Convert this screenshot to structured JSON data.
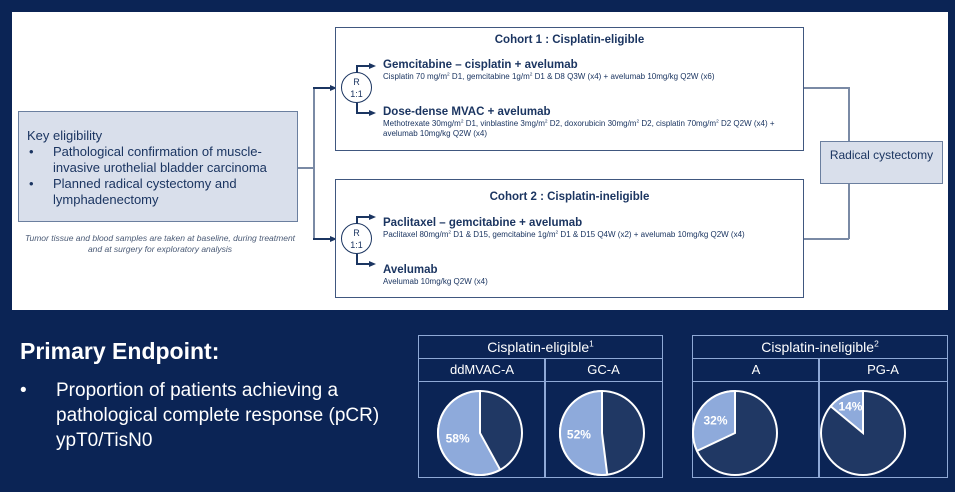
{
  "eligibility": {
    "title": "Key eligibility",
    "bullets": [
      "Pathological confirmation of muscle-invasive urothelial bladder carcinoma",
      "Planned radical cystectomy and lymphadenectomy"
    ],
    "note": "Tumor tissue and blood samples are taken at baseline, during treatment and at surgery for exploratory analysis"
  },
  "randomization": {
    "r": "R",
    "ratio": "1:1"
  },
  "cohort1": {
    "title": "Cohort 1 : Cisplatin-eligible",
    "arm1": {
      "name": "Gemcitabine – cisplatin + avelumab",
      "regimen": [
        "Cisplatin 70 mg/m",
        "2",
        " D1, gemcitabine 1g/m",
        "2",
        " D1 & D8 Q3W (x4) + avelumab 10mg/kg Q2W (x6)"
      ]
    },
    "arm2": {
      "name": "Dose-dense MVAC + avelumab",
      "regimen": [
        "Methotrexate 30mg/m",
        "2",
        " D1, vinblastine 3mg/m",
        "2",
        " D2, doxorubicin 30mg/m",
        "2",
        " D2, cisplatin 70mg/m",
        "2",
        " D2 Q2W (x4) + avelumab 10mg/kg Q2W (x4)"
      ]
    }
  },
  "cohort2": {
    "title": "Cohort 2 : Cisplatin-ineligible",
    "arm1": {
      "name": "Paclitaxel – gemcitabine + avelumab",
      "regimen": [
        "Paclitaxel 80mg/m",
        "2",
        " D1 & D15, gemcitabine 1g/m",
        "2",
        " D1 & D15 Q4W (x2) + avelumab 10mg/kg Q2W (x4)"
      ]
    },
    "arm2": {
      "name": "Avelumab",
      "regimen": [
        "Avelumab 10mg/kg Q2W (x4)"
      ]
    }
  },
  "outcome": "Radical cystectomy",
  "endpoint": {
    "title": "Primary Endpoint:",
    "bullet": "Proportion of patients achieving a pathological complete response (pCR) ypT0/TisN0"
  },
  "colors": {
    "background": "#0b2455",
    "pie_light": "#8eaadb",
    "pie_dark": "#203864",
    "border": "#8fa9d6"
  },
  "chart_data": [
    {
      "type": "pie",
      "group": "Cisplatin-eligible",
      "group_sup": "1",
      "category": "ddMVAC-A",
      "values": [
        58,
        42
      ],
      "label": "58%"
    },
    {
      "type": "pie",
      "group": "Cisplatin-eligible",
      "group_sup": "1",
      "category": "GC-A",
      "values": [
        52,
        48
      ],
      "label": "52%"
    },
    {
      "type": "pie",
      "group": "Cisplatin-ineligible",
      "group_sup": "2",
      "category": "A",
      "values": [
        32,
        68
      ],
      "label": "32%"
    },
    {
      "type": "pie",
      "group": "Cisplatin-ineligible",
      "group_sup": "2",
      "category": "PG-A",
      "values": [
        14,
        86
      ],
      "label": "14%"
    }
  ]
}
